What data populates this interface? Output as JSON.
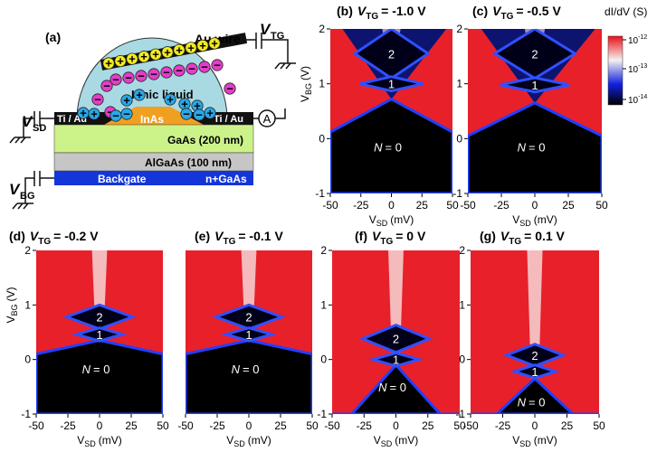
{
  "schematic": {
    "label": "(a)",
    "au_wire": "Au wire",
    "v": "V",
    "tg": "TG",
    "sd": "SD",
    "bg": "BG",
    "ionic_liquid": "Ionic liquid",
    "ti_au": "Ti / Au",
    "inas": "InAs",
    "gaas": "GaAs (200 nm)",
    "algaas": "AlGaAs (100 nm)",
    "backgate": "Backgate",
    "n_gaas": "n+GaAs",
    "ammeter": "A",
    "plus": "+",
    "minus": "−"
  },
  "axes": {
    "xlim": [
      -50,
      50
    ],
    "ylim": [
      -1,
      2
    ],
    "xticks": [
      -50,
      -25,
      0,
      25,
      50
    ],
    "yticks": [
      -1,
      0,
      1,
      2
    ],
    "x_symbol": "V",
    "x_sub": "SD",
    "x_unit": "(mV)",
    "y_symbol": "V",
    "y_sub": "BG",
    "y_unit": "(V)"
  },
  "colorbar": {
    "title": "dI/dV (S)",
    "base": "10",
    "exponents": [
      "-12",
      "-13",
      "-14"
    ]
  },
  "region_labels": {
    "one": "1",
    "two": "2",
    "n": "N",
    "n_value": "= 0"
  },
  "panels": [
    {
      "label": "(b)",
      "symbol": "V",
      "sub": "TG",
      "value": "= -1.0 V"
    },
    {
      "label": "(c)",
      "symbol": "V",
      "sub": "TG",
      "value": "= -0.5 V"
    },
    {
      "label": "(d)",
      "symbol": "V",
      "sub": "TG",
      "value": "= -0.2 V"
    },
    {
      "label": "(e)",
      "symbol": "V",
      "sub": "TG",
      "value": "= -0.1 V"
    },
    {
      "label": "(f)",
      "symbol": "V",
      "sub": "TG",
      "value": "= 0 V"
    },
    {
      "label": "(g)",
      "symbol": "V",
      "sub": "TG",
      "value": "= 0.1 V"
    }
  ]
}
